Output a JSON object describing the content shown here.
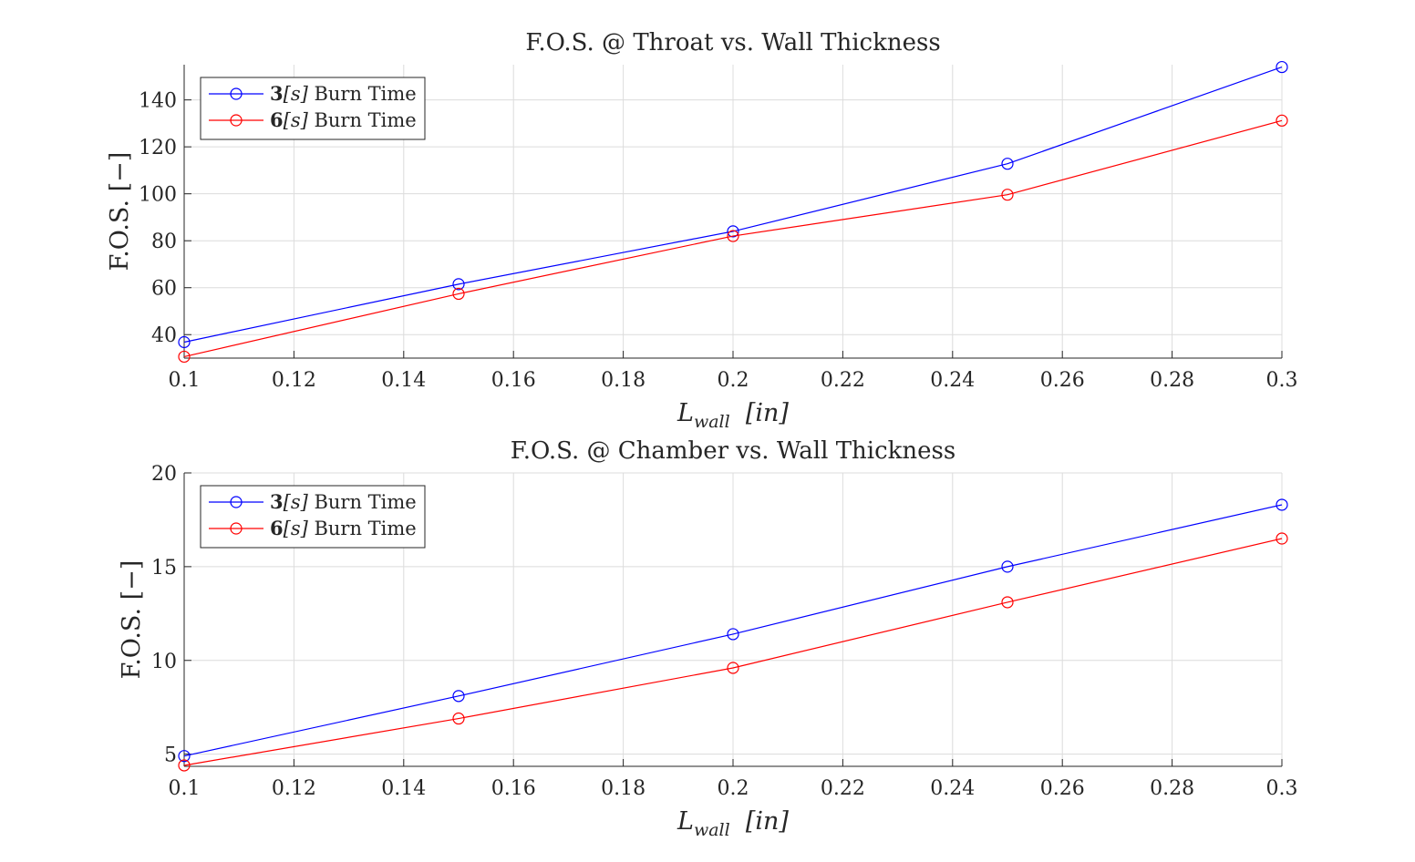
{
  "chart_data": [
    {
      "type": "line",
      "title": "F.O.S. @ Throat vs. Wall Thickness",
      "xlabel_main": "L",
      "xlabel_sub": "wall",
      "xlabel_unit": "[in]",
      "ylabel": "F.O.S. [−]",
      "xlim": [
        0.1,
        0.3
      ],
      "ylim": [
        30,
        155
      ],
      "xticks": [
        0.1,
        0.12,
        0.14,
        0.16,
        0.18,
        0.2,
        0.22,
        0.24,
        0.26,
        0.28,
        0.3
      ],
      "xtick_labels": [
        "0.1",
        "0.12",
        "0.14",
        "0.16",
        "0.18",
        "0.2",
        "0.22",
        "0.24",
        "0.26",
        "0.28",
        "0.3"
      ],
      "yticks": [
        40,
        60,
        80,
        100,
        120,
        140
      ],
      "ytick_labels": [
        "40",
        "60",
        "80",
        "100",
        "120",
        "140"
      ],
      "grid": true,
      "legend_position": "top-left",
      "x": [
        0.1,
        0.15,
        0.2,
        0.25,
        0.3
      ],
      "series": [
        {
          "name_value": "3",
          "name_var": "[s]",
          "name_rest": " Burn Time",
          "color": "#0000ff",
          "values": [
            36.8,
            61.5,
            84.0,
            112.8,
            154.0
          ]
        },
        {
          "name_value": "6",
          "name_var": "[s]",
          "name_rest": " Burn Time",
          "color": "#ff0000",
          "values": [
            30.6,
            57.4,
            82.0,
            99.6,
            131.2
          ]
        }
      ]
    },
    {
      "type": "line",
      "title": "F.O.S. @ Chamber vs. Wall Thickness",
      "xlabel_main": "L",
      "xlabel_sub": "wall",
      "xlabel_unit": "[in]",
      "ylabel": "F.O.S. [−]",
      "xlim": [
        0.1,
        0.3
      ],
      "ylim": [
        4.35,
        20
      ],
      "xticks": [
        0.1,
        0.12,
        0.14,
        0.16,
        0.18,
        0.2,
        0.22,
        0.24,
        0.26,
        0.28,
        0.3
      ],
      "xtick_labels": [
        "0.1",
        "0.12",
        "0.14",
        "0.16",
        "0.18",
        "0.2",
        "0.22",
        "0.24",
        "0.26",
        "0.28",
        "0.3"
      ],
      "yticks": [
        5,
        10,
        15,
        20
      ],
      "ytick_labels": [
        "5",
        "10",
        "15",
        "20"
      ],
      "grid": true,
      "legend_position": "top-left",
      "x": [
        0.1,
        0.15,
        0.2,
        0.25,
        0.3
      ],
      "series": [
        {
          "name_value": "3",
          "name_var": "[s]",
          "name_rest": " Burn Time",
          "color": "#0000ff",
          "values": [
            4.9,
            8.1,
            11.4,
            15.0,
            18.3
          ]
        },
        {
          "name_value": "6",
          "name_var": "[s]",
          "name_rest": " Burn Time",
          "color": "#ff0000",
          "values": [
            4.4,
            6.9,
            9.6,
            13.1,
            16.5
          ]
        }
      ]
    }
  ]
}
